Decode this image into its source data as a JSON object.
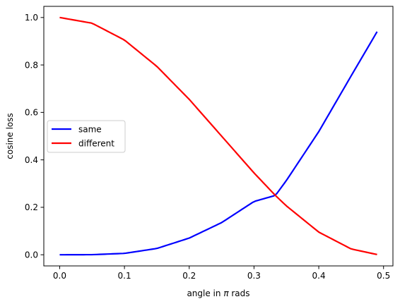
{
  "chart_data": {
    "type": "line",
    "title": "",
    "xlabel_prefix": "angle in ",
    "xlabel_symbol": "π",
    "xlabel_suffix": " rads",
    "ylabel": "cosine loss",
    "xlim": [
      -0.0245,
      0.5145
    ],
    "ylim": [
      -0.047,
      1.047
    ],
    "xticks": [
      0.0,
      0.1,
      0.2,
      0.3,
      0.4,
      0.5
    ],
    "xtick_labels": [
      "0.0",
      "0.1",
      "0.2",
      "0.3",
      "0.4",
      "0.5"
    ],
    "yticks": [
      0.0,
      0.2,
      0.4,
      0.6,
      0.8,
      1.0
    ],
    "ytick_labels": [
      "0.0",
      "0.2",
      "0.4",
      "0.6",
      "0.8",
      "1.0"
    ],
    "grid": false,
    "legend_position": "center-left",
    "series": [
      {
        "name": "same",
        "color": "#0000ff",
        "x": [
          0.0,
          0.05,
          0.1,
          0.15,
          0.2,
          0.25,
          0.3,
          0.333,
          0.35,
          0.4,
          0.45,
          0.49
        ],
        "y": [
          0.0,
          0.0004,
          0.0058,
          0.0265,
          0.0703,
          0.1355,
          0.2245,
          0.25,
          0.313,
          0.519,
          0.754,
          0.94
        ]
      },
      {
        "name": "different",
        "color": "#ff0000",
        "x": [
          0.0,
          0.05,
          0.1,
          0.15,
          0.2,
          0.25,
          0.3,
          0.333,
          0.35,
          0.4,
          0.45,
          0.49
        ],
        "y": [
          1.0,
          0.976,
          0.905,
          0.794,
          0.655,
          0.5,
          0.345,
          0.25,
          0.206,
          0.0955,
          0.0245,
          0.001
        ]
      }
    ]
  }
}
